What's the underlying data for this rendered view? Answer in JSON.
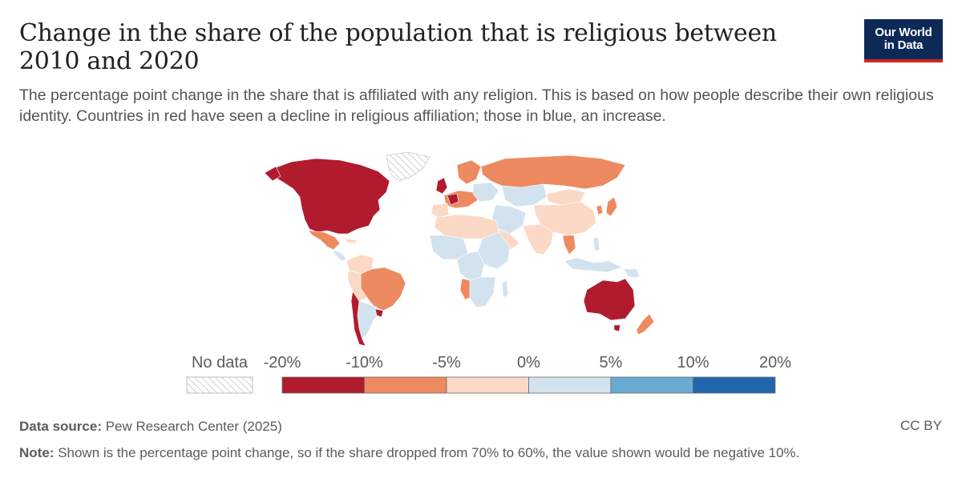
{
  "header": {
    "title": "Change in the share of the population that is religious between 2010 and 2020",
    "subtitle": "The percentage point change in the share that is affiliated with any religion. This is based on how people describe their own religious identity. Countries in red have seen a decline in religious affiliation; those in blue, an increase."
  },
  "logo": {
    "line1": "Our World",
    "line2": "in Data",
    "bg": "#0d2a56",
    "accent": "#ce261e"
  },
  "map_data": {
    "type": "choropleth",
    "regions": [
      {
        "name": "North America (US & Canada)",
        "bin": "-20% to -10%",
        "color": "#b01c2e"
      },
      {
        "name": "Mexico",
        "bin": "-10% to -5%",
        "color": "#ee8a5f"
      },
      {
        "name": "Uruguay",
        "bin": "-20% to -10%",
        "color": "#b01c2e"
      },
      {
        "name": "Chile",
        "bin": "-20% to -10%",
        "color": "#b01c2e"
      },
      {
        "name": "Brazil",
        "bin": "-10% to -5%",
        "color": "#ee8a5f"
      },
      {
        "name": "Argentina",
        "bin": "0% to 5%",
        "color": "#d2e3ef"
      },
      {
        "name": "Australia",
        "bin": "-20% to -10%",
        "color": "#b01c2e"
      },
      {
        "name": "New Zealand",
        "bin": "-10% to -5%",
        "color": "#ee8a5f"
      },
      {
        "name": "Russia",
        "bin": "-10% to -5%",
        "color": "#ee8a5f"
      },
      {
        "name": "Kazakhstan",
        "bin": "0% to 5%",
        "color": "#d2e3ef"
      },
      {
        "name": "China",
        "bin": "-5% to 0%",
        "color": "#fbd9c6"
      },
      {
        "name": "Japan",
        "bin": "-10% to -5%",
        "color": "#ee8a5f"
      },
      {
        "name": "United Kingdom",
        "bin": "-20% to -10%",
        "color": "#b01c2e"
      },
      {
        "name": "Namibia",
        "bin": "-10% to -5%",
        "color": "#ee8a5f"
      },
      {
        "name": "Greenland",
        "bin": "No data",
        "color": "hatched"
      }
    ]
  },
  "legend": {
    "no_data_label": "No data",
    "ticks": [
      "-20%",
      "-10%",
      "-5%",
      "0%",
      "5%",
      "10%",
      "20%"
    ],
    "bins": [
      {
        "range": "-20% to -10%",
        "color": "#b01c2e"
      },
      {
        "range": "-10% to -5%",
        "color": "#ee8a5f"
      },
      {
        "range": "-5% to 0%",
        "color": "#fbd9c6"
      },
      {
        "range": "0% to 5%",
        "color": "#d2e3ef"
      },
      {
        "range": "5% to 10%",
        "color": "#6aa9d1"
      },
      {
        "range": "10% to 20%",
        "color": "#2166ac"
      }
    ]
  },
  "footer": {
    "source_label": "Data source:",
    "source_text": "Pew Research Center (2025)",
    "license": "CC BY",
    "note_label": "Note:",
    "note_text": "Shown is the percentage point change, so if the share dropped from 70% to 60%, the value shown would be negative 10%."
  }
}
